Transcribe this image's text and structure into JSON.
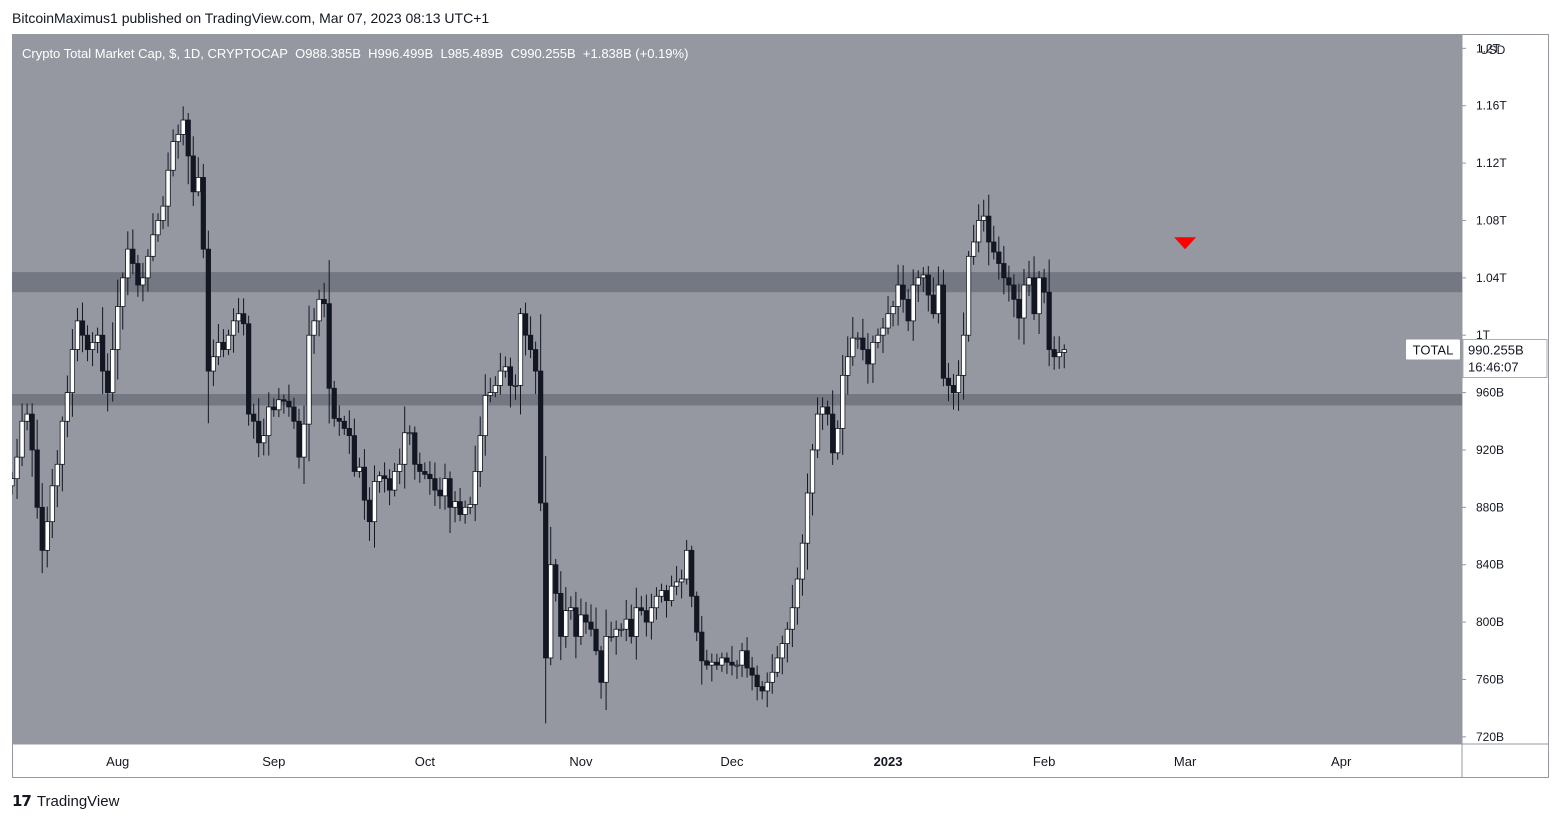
{
  "publisher": "BitcoinMaximus1 published on TradingView.com, Mar 07, 2023 08:13 UTC+1",
  "legend": {
    "symbol": "Crypto Total Market Cap, $, 1D, CRYPTOCAP",
    "o_label": "O",
    "o_value": "988.385B",
    "h_label": "H",
    "h_value": "996.499B",
    "l_label": "L",
    "l_value": "985.489B",
    "c_label": "C",
    "c_value": "990.255B",
    "change": "+1.838B (+0.19%)"
  },
  "currency": "USD",
  "price_tag": {
    "symbol": "TOTAL",
    "value": "990.255B",
    "countdown": "16:46:07"
  },
  "footer": {
    "brand": "TradingView"
  },
  "colors": {
    "plot_bg": "#9598a1",
    "up": "#ffffff",
    "down": "#131722",
    "zone": "#6a6d78",
    "marker": "#ff0000"
  },
  "chart_data": {
    "type": "candlestick",
    "ylim": [
      715,
      1210
    ],
    "y_unit": "B USD",
    "y_ticks": [
      {
        "value": 720,
        "label": "720B"
      },
      {
        "value": 760,
        "label": "760B"
      },
      {
        "value": 800,
        "label": "800B"
      },
      {
        "value": 840,
        "label": "840B"
      },
      {
        "value": 880,
        "label": "880B"
      },
      {
        "value": 920,
        "label": "920B"
      },
      {
        "value": 960,
        "label": "960B"
      },
      {
        "value": 1000,
        "label": "1T"
      },
      {
        "value": 1040,
        "label": "1.04T"
      },
      {
        "value": 1080,
        "label": "1.08T"
      },
      {
        "value": 1120,
        "label": "1.12T"
      },
      {
        "value": 1160,
        "label": "1.16T"
      },
      {
        "value": 1200,
        "label": "1.2T"
      }
    ],
    "x_start": "2022-07-11",
    "x_end": "2023-04-25",
    "x_ticks": [
      {
        "date": "2022-08-01",
        "label": "Aug"
      },
      {
        "date": "2022-09-01",
        "label": "Sep"
      },
      {
        "date": "2022-10-01",
        "label": "Oct"
      },
      {
        "date": "2022-11-01",
        "label": "Nov"
      },
      {
        "date": "2022-12-01",
        "label": "Dec"
      },
      {
        "date": "2023-01-01",
        "label": "2023"
      },
      {
        "date": "2023-02-01",
        "label": "Feb"
      },
      {
        "date": "2023-03-01",
        "label": "Mar"
      },
      {
        "date": "2023-04-01",
        "label": "Apr"
      }
    ],
    "start_date": "2022-07-11",
    "closes": [
      900,
      915,
      940,
      945,
      920,
      880,
      850,
      870,
      895,
      910,
      940,
      960,
      990,
      1010,
      1000,
      990,
      995,
      1000,
      975,
      960,
      990,
      1020,
      1040,
      1060,
      1050,
      1035,
      1040,
      1055,
      1070,
      1080,
      1090,
      1115,
      1135,
      1140,
      1150,
      1125,
      1100,
      1110,
      1060,
      975,
      985,
      995,
      990,
      1000,
      1010,
      1015,
      1008,
      945,
      940,
      925,
      930,
      950,
      948,
      955,
      954,
      950,
      940,
      915,
      938,
      1000,
      1010,
      1025,
      1022,
      963,
      942,
      940,
      935,
      930,
      905,
      908,
      885,
      870,
      898,
      902,
      900,
      892,
      905,
      910,
      932,
      932,
      910,
      905,
      903,
      900,
      892,
      888,
      900,
      880,
      884,
      875,
      880,
      882,
      905,
      930,
      958,
      960,
      965,
      975,
      978,
      965,
      965,
      1015,
      1000,
      990,
      975,
      883,
      775,
      840,
      820,
      790,
      808,
      810,
      790,
      805,
      800,
      795,
      780,
      758,
      790,
      790,
      795,
      795,
      802,
      790,
      810,
      808,
      800,
      810,
      818,
      822,
      815,
      825,
      828,
      830,
      850,
      818,
      793,
      773,
      770,
      772,
      770,
      775,
      772,
      770,
      770,
      780,
      768,
      763,
      755,
      752,
      758,
      765,
      775,
      785,
      795,
      810,
      830,
      855,
      890,
      920,
      945,
      950,
      945,
      918,
      935,
      972,
      985,
      998,
      998,
      990,
      980,
      995,
      1000,
      1005,
      1015,
      1020,
      1035,
      1025,
      1010,
      1035,
      1040,
      1042,
      1028,
      1015,
      1035,
      970,
      965,
      960,
      972,
      1000,
      1055,
      1065,
      1080,
      1083,
      1065,
      1058,
      1050,
      1040,
      1035,
      1025,
      1012,
      1035,
      1040,
      1015,
      1040,
      1030,
      990,
      985,
      988,
      990
    ],
    "zones": [
      {
        "low": 1030,
        "high": 1044,
        "label": ""
      },
      {
        "low": 951,
        "high": 959,
        "label": ""
      }
    ],
    "marker": {
      "date": "2023-03-01",
      "value": 1062,
      "shape": "down-triangle"
    },
    "grid": false,
    "legend": "none"
  }
}
